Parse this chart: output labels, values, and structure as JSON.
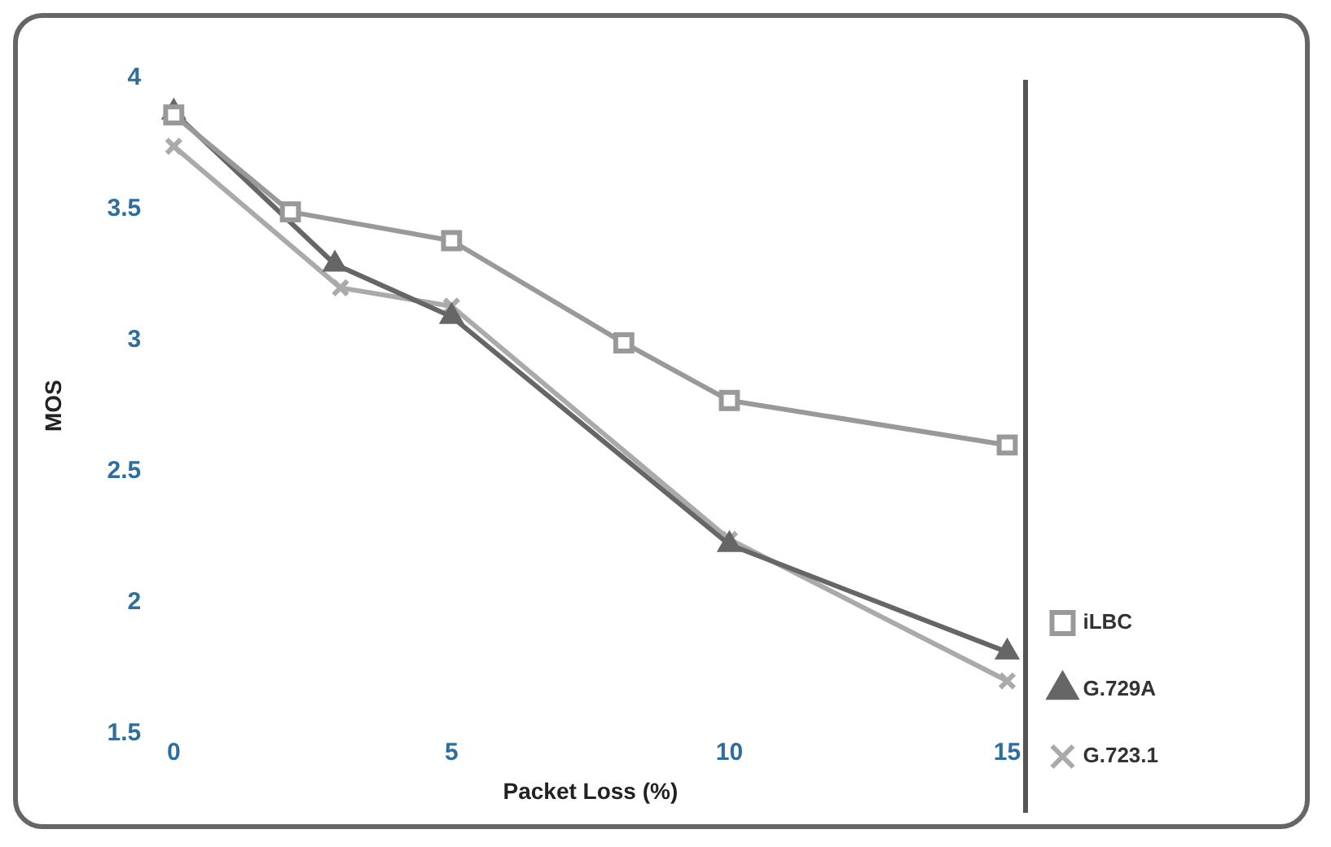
{
  "chart_data": {
    "type": "line",
    "xlabel": "Packet Loss (%)",
    "ylabel": "MOS",
    "xlim": [
      0,
      15
    ],
    "xticks": [
      0,
      5,
      10,
      15
    ],
    "ylim": [
      1.5,
      4
    ],
    "yticks": [
      1.5,
      2,
      2.5,
      3,
      3.5,
      4
    ],
    "grid": false,
    "legend": "right",
    "line_style": "solid",
    "series": [
      {
        "name": "iLBC",
        "color": "#999999",
        "marker": "square",
        "x": [
          0,
          2.1,
          5,
          8.1,
          10,
          15
        ],
        "values": [
          3.86,
          3.49,
          3.38,
          2.99,
          2.77,
          2.6
        ]
      },
      {
        "name": "G.729A",
        "color": "#666666",
        "marker": "triangle",
        "x": [
          0,
          2.9,
          5,
          10,
          15
        ],
        "values": [
          3.87,
          3.29,
          3.09,
          2.22,
          1.81
        ]
      },
      {
        "name": "G.723.1",
        "color": "#aaaaaa",
        "marker": "cross",
        "x": [
          0,
          3,
          5,
          10,
          15
        ],
        "values": [
          3.74,
          3.2,
          3.13,
          2.24,
          1.7
        ]
      }
    ]
  }
}
